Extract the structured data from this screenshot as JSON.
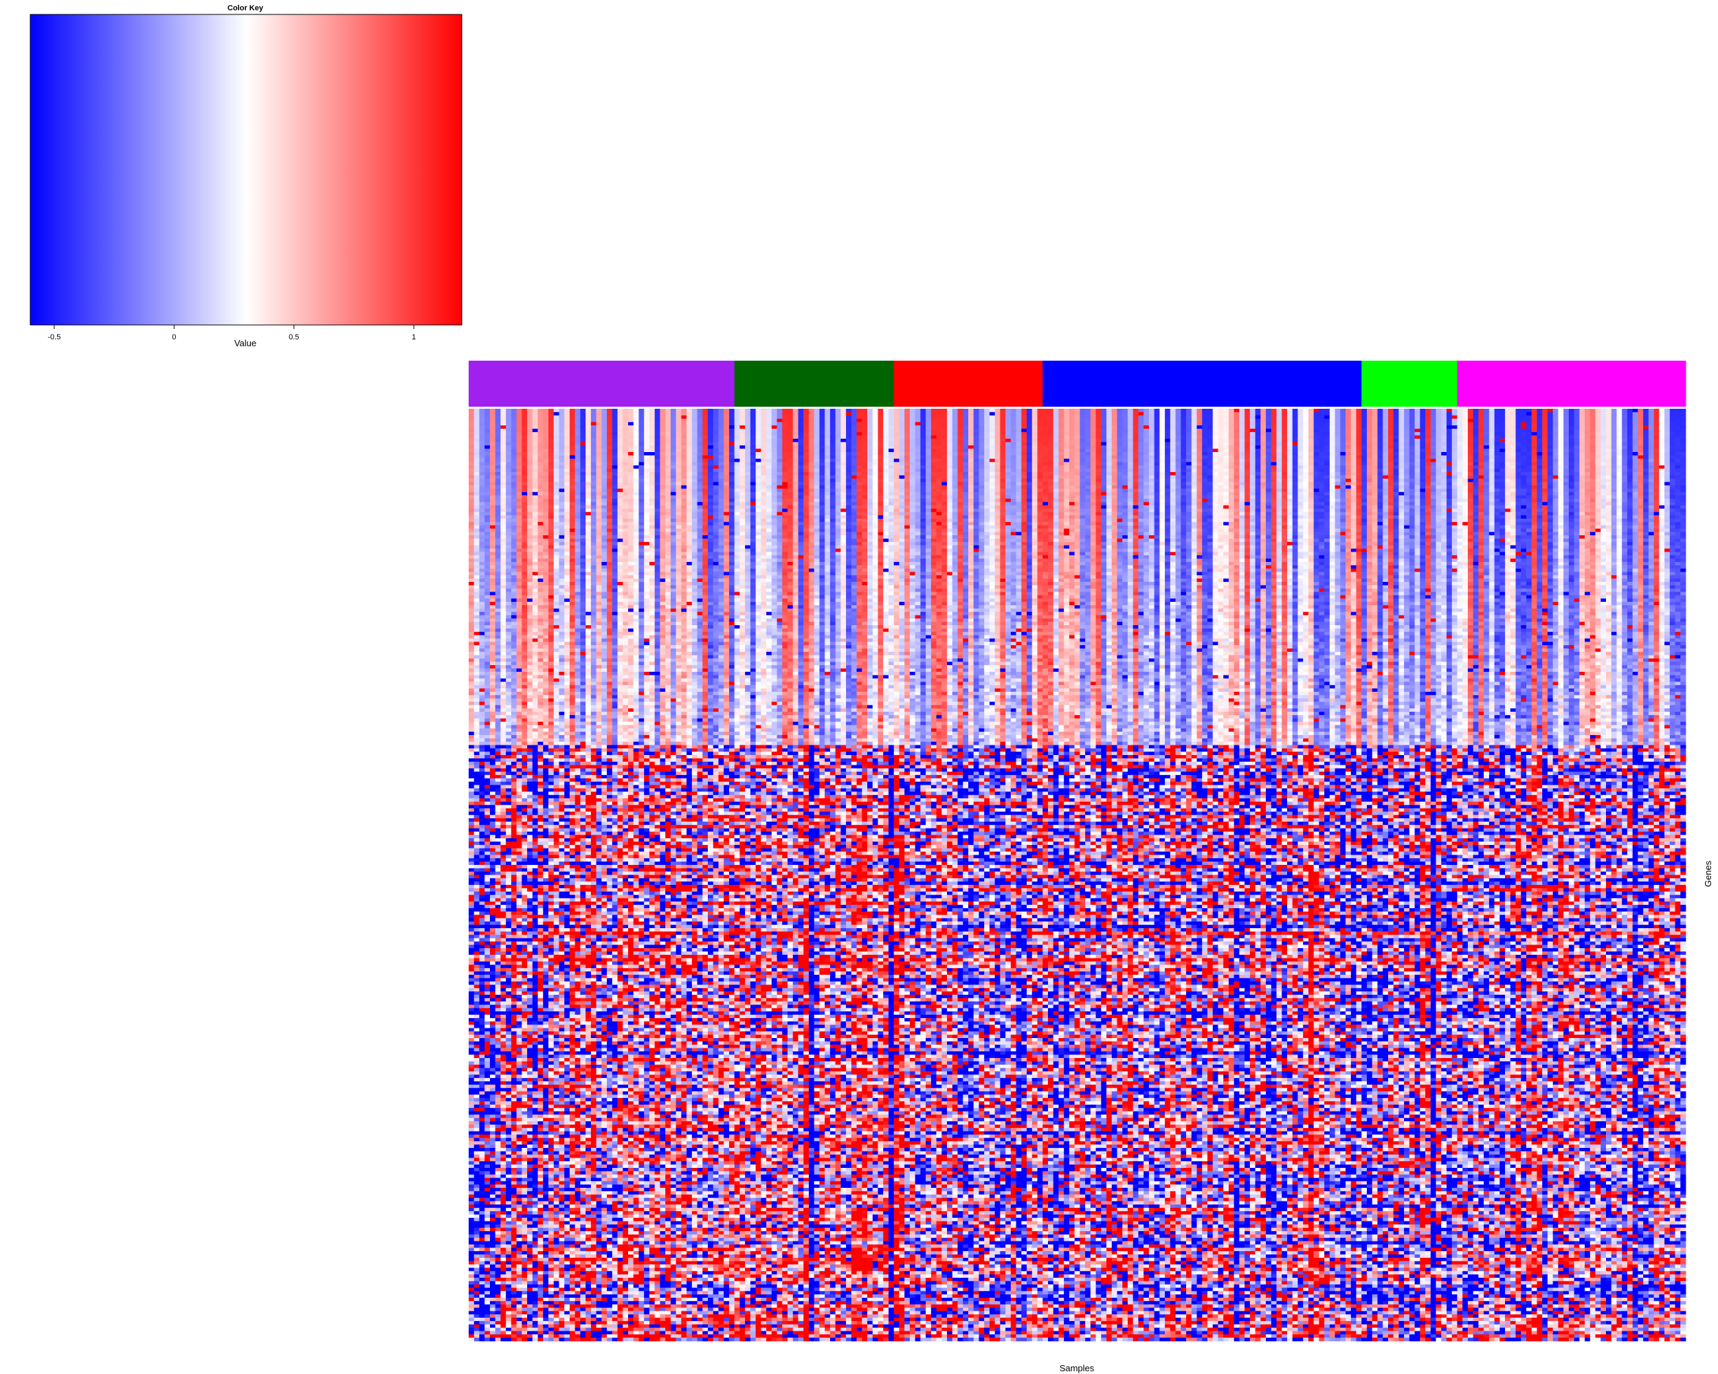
{
  "chart_data": {
    "type": "heatmap",
    "title": "",
    "xlabel": "Samples",
    "ylabel": "Genes",
    "color_key": {
      "title": "Color Key",
      "xlabel": "Value",
      "range": [
        -0.6,
        1.2
      ],
      "ticks": [
        -0.5,
        0,
        0.5,
        1
      ],
      "tick_labels": [
        "-0.5",
        "0",
        "0.5",
        "1"
      ],
      "colors": [
        "#0000ff",
        "#ffffff",
        "#ff0000"
      ],
      "midpoint": 0.3
    },
    "groups": [
      {
        "color": "#a020f0",
        "n_samples": 50
      },
      {
        "color": "#006400",
        "n_samples": 30
      },
      {
        "color": "#ff0000",
        "n_samples": 28
      },
      {
        "color": "#0000ff",
        "n_samples": 60
      },
      {
        "color": "#00ff00",
        "n_samples": 18
      },
      {
        "color": "#ff00ff",
        "n_samples": 43
      }
    ],
    "n_genes": 280
  }
}
